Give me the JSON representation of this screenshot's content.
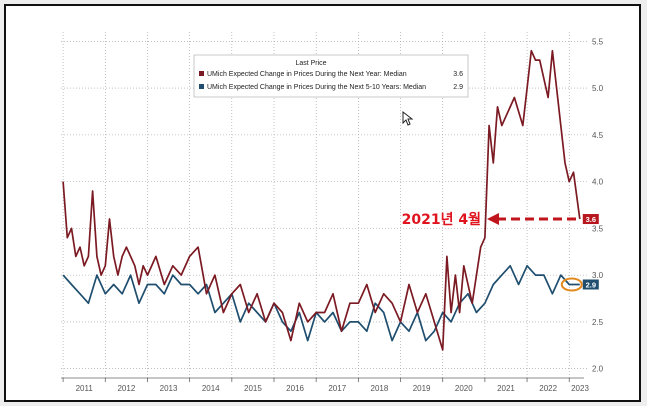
{
  "chart_data": {
    "type": "line",
    "title": "",
    "xlabel": "",
    "ylabel": "",
    "ylim": [
      1.9,
      5.6
    ],
    "y_ticks": [
      "2.0",
      "2.5",
      "3.0",
      "3.5",
      "4.0",
      "4.5",
      "5.0",
      "5.5"
    ],
    "x_ticks": [
      "2011",
      "2012",
      "2013",
      "2014",
      "2015",
      "2016",
      "2017",
      "2018",
      "2019",
      "2020",
      "2021",
      "2022",
      "2023"
    ],
    "grid": true,
    "legend_position": "top-center",
    "legend_header": "Last Price",
    "series": [
      {
        "name": "UMich Expected Change in Prices During the Next Year: Median",
        "last_value": "3.6",
        "color": "#7b1a22",
        "x": [
          2011.0,
          2011.1,
          2011.2,
          2011.3,
          2011.4,
          2011.5,
          2011.6,
          2011.7,
          2011.8,
          2011.9,
          2012.0,
          2012.1,
          2012.2,
          2012.3,
          2012.4,
          2012.5,
          2012.6,
          2012.7,
          2012.8,
          2012.9,
          2013.0,
          2013.2,
          2013.4,
          2013.6,
          2013.8,
          2014.0,
          2014.2,
          2014.4,
          2014.6,
          2014.8,
          2015.0,
          2015.2,
          2015.4,
          2015.6,
          2015.8,
          2016.0,
          2016.2,
          2016.4,
          2016.6,
          2016.8,
          2017.0,
          2017.2,
          2017.4,
          2017.6,
          2017.8,
          2018.0,
          2018.2,
          2018.4,
          2018.6,
          2018.8,
          2019.0,
          2019.2,
          2019.4,
          2019.6,
          2019.8,
          2020.0,
          2020.1,
          2020.2,
          2020.3,
          2020.4,
          2020.5,
          2020.7,
          2020.9,
          2021.0,
          2021.1,
          2021.2,
          2021.3,
          2021.4,
          2021.5,
          2021.7,
          2021.9,
          2022.0,
          2022.1,
          2022.2,
          2022.3,
          2022.4,
          2022.5,
          2022.6,
          2022.7,
          2022.8,
          2022.9,
          2023.0,
          2023.1,
          2023.25
        ],
        "values": [
          4.0,
          3.4,
          3.5,
          3.2,
          3.3,
          3.1,
          3.2,
          3.9,
          3.2,
          3.0,
          3.1,
          3.6,
          3.2,
          3.0,
          3.2,
          3.3,
          3.2,
          3.1,
          2.9,
          3.1,
          3.0,
          3.2,
          2.9,
          3.1,
          3.0,
          3.2,
          3.3,
          2.8,
          3.0,
          2.6,
          2.8,
          2.9,
          2.6,
          2.8,
          2.5,
          2.7,
          2.6,
          2.3,
          2.7,
          2.5,
          2.6,
          2.6,
          2.8,
          2.4,
          2.7,
          2.7,
          2.9,
          2.6,
          2.8,
          2.7,
          2.5,
          2.9,
          2.6,
          2.8,
          2.5,
          2.2,
          3.2,
          2.6,
          3.0,
          2.6,
          3.1,
          2.7,
          3.3,
          3.4,
          4.6,
          4.2,
          4.8,
          4.6,
          4.7,
          4.9,
          4.6,
          5.0,
          5.4,
          5.3,
          5.3,
          5.1,
          4.9,
          5.4,
          5.0,
          4.6,
          4.2,
          4.0,
          4.1,
          3.6
        ]
      },
      {
        "name": "UMich Expected Change in Prices During the Next 5-10 Years: Median",
        "last_value": "2.9",
        "color": "#1f4e6e",
        "x": [
          2011.0,
          2011.2,
          2011.4,
          2011.6,
          2011.8,
          2012.0,
          2012.2,
          2012.4,
          2012.6,
          2012.8,
          2013.0,
          2013.2,
          2013.4,
          2013.6,
          2013.8,
          2014.0,
          2014.2,
          2014.4,
          2014.6,
          2014.8,
          2015.0,
          2015.2,
          2015.4,
          2015.6,
          2015.8,
          2016.0,
          2016.2,
          2016.4,
          2016.6,
          2016.8,
          2017.0,
          2017.2,
          2017.4,
          2017.6,
          2017.8,
          2018.0,
          2018.2,
          2018.4,
          2018.6,
          2018.8,
          2019.0,
          2019.2,
          2019.4,
          2019.6,
          2019.8,
          2020.0,
          2020.2,
          2020.4,
          2020.6,
          2020.8,
          2021.0,
          2021.2,
          2021.4,
          2021.6,
          2021.8,
          2022.0,
          2022.2,
          2022.4,
          2022.6,
          2022.8,
          2023.0,
          2023.25
        ],
        "values": [
          3.0,
          2.9,
          2.8,
          2.7,
          3.0,
          2.8,
          2.9,
          2.8,
          3.0,
          2.7,
          2.9,
          2.9,
          2.8,
          3.0,
          2.9,
          2.9,
          2.8,
          2.9,
          2.6,
          2.7,
          2.8,
          2.5,
          2.7,
          2.6,
          2.5,
          2.7,
          2.5,
          2.4,
          2.6,
          2.3,
          2.6,
          2.5,
          2.6,
          2.4,
          2.5,
          2.5,
          2.4,
          2.7,
          2.6,
          2.3,
          2.5,
          2.4,
          2.6,
          2.3,
          2.4,
          2.6,
          2.5,
          2.7,
          2.8,
          2.6,
          2.7,
          2.9,
          3.0,
          3.1,
          2.9,
          3.1,
          3.0,
          3.0,
          2.8,
          3.0,
          2.9,
          2.9
        ]
      }
    ],
    "annotations": [
      {
        "text": "2021년 4월",
        "color": "#e0141e"
      },
      {
        "text": "3.6",
        "series": 0
      },
      {
        "text": "2.9",
        "series": 1
      }
    ]
  }
}
